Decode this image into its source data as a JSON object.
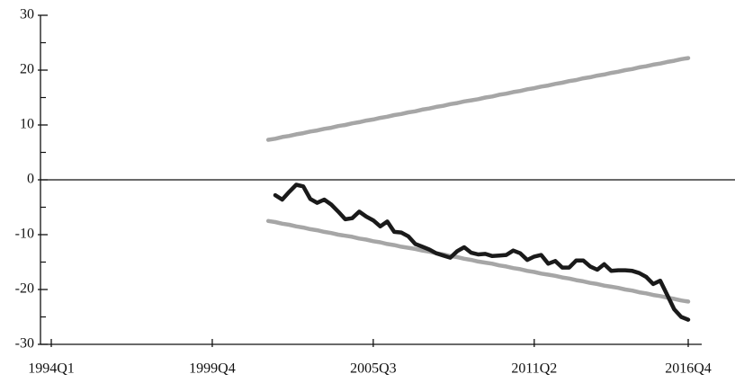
{
  "chart_data": {
    "type": "line",
    "categories": [
      "1994Q1",
      null,
      null,
      null,
      null,
      null,
      null,
      null,
      null,
      null,
      null,
      null,
      null,
      null,
      null,
      null,
      null,
      null,
      null,
      null,
      null,
      null,
      null,
      "1999Q4",
      null,
      null,
      null,
      null,
      null,
      null,
      null,
      null,
      null,
      null,
      null,
      null,
      null,
      null,
      null,
      null,
      null,
      null,
      null,
      null,
      null,
      null,
      "2005Q3",
      null,
      null,
      null,
      null,
      null,
      null,
      null,
      null,
      null,
      null,
      null,
      null,
      null,
      null,
      null,
      null,
      null,
      null,
      null,
      null,
      null,
      null,
      "2011Q2",
      null,
      null,
      null,
      null,
      null,
      null,
      null,
      null,
      null,
      null,
      null,
      null,
      null,
      null,
      null,
      null,
      null,
      null,
      null,
      null,
      null,
      "2016Q4"
    ],
    "series": [
      {
        "color": "#a6a6a6",
        "values": [
          null,
          null,
          null,
          null,
          null,
          null,
          null,
          null,
          null,
          null,
          null,
          null,
          null,
          null,
          null,
          null,
          null,
          null,
          null,
          null,
          null,
          null,
          null,
          null,
          null,
          null,
          null,
          null,
          null,
          null,
          null,
          7.3,
          7.5,
          7.8,
          8.0,
          8.3,
          8.5,
          8.8,
          9.0,
          9.3,
          9.5,
          9.8,
          10.0,
          10.3,
          10.5,
          10.8,
          11.0,
          11.3,
          11.5,
          11.8,
          12.0,
          12.3,
          12.5,
          12.8,
          13.0,
          13.3,
          13.5,
          13.8,
          14.0,
          14.3,
          14.5,
          14.7,
          15.0,
          15.2,
          15.5,
          15.7,
          16.0,
          16.2,
          16.5,
          16.7,
          17.0,
          17.2,
          17.5,
          17.7,
          18.0,
          18.2,
          18.5,
          18.7,
          19.0,
          19.2,
          19.5,
          19.7,
          20.0,
          20.2,
          20.5,
          20.7,
          21.0,
          21.2,
          21.5,
          21.7,
          22.0,
          22.2
        ]
      },
      {
        "color": "#a6a6a6",
        "values": [
          null,
          null,
          null,
          null,
          null,
          null,
          null,
          null,
          null,
          null,
          null,
          null,
          null,
          null,
          null,
          null,
          null,
          null,
          null,
          null,
          null,
          null,
          null,
          null,
          null,
          null,
          null,
          null,
          null,
          null,
          null,
          -7.5,
          -7.7,
          -8.0,
          -8.2,
          -8.5,
          -8.7,
          -9.0,
          -9.2,
          -9.5,
          -9.7,
          -10.0,
          -10.2,
          -10.4,
          -10.7,
          -10.9,
          -11.2,
          -11.4,
          -11.7,
          -11.9,
          -12.2,
          -12.4,
          -12.6,
          -12.9,
          -13.1,
          -13.4,
          -13.6,
          -13.9,
          -14.1,
          -14.4,
          -14.6,
          -14.9,
          -15.1,
          -15.3,
          -15.6,
          -15.8,
          -16.1,
          -16.3,
          -16.6,
          -16.8,
          -17.1,
          -17.3,
          -17.5,
          -17.8,
          -18.0,
          -18.3,
          -18.5,
          -18.8,
          -19.0,
          -19.3,
          -19.5,
          -19.7,
          -20.0,
          -20.2,
          -20.5,
          -20.7,
          -21.0,
          -21.2,
          -21.5,
          -21.7,
          -22.0,
          -22.2
        ]
      },
      {
        "color": "#1a1a1a",
        "values": [
          null,
          null,
          null,
          null,
          null,
          null,
          null,
          null,
          null,
          null,
          null,
          null,
          null,
          null,
          null,
          null,
          null,
          null,
          null,
          null,
          null,
          null,
          null,
          null,
          null,
          null,
          null,
          null,
          null,
          null,
          null,
          null,
          -2.8,
          -3.6,
          -2.2,
          -0.9,
          -1.2,
          -3.5,
          -4.2,
          -3.6,
          -4.5,
          -5.8,
          -7.2,
          -7.0,
          -5.8,
          -6.7,
          -7.4,
          -8.5,
          -7.6,
          -9.5,
          -9.6,
          -10.3,
          -11.7,
          -12.2,
          -12.7,
          -13.4,
          -13.8,
          -14.2,
          -13.0,
          -12.3,
          -13.3,
          -13.6,
          -13.5,
          -13.9,
          -13.8,
          -13.7,
          -12.9,
          -13.4,
          -14.6,
          -14.0,
          -13.7,
          -15.3,
          -14.8,
          -16.0,
          -16.0,
          -14.7,
          -14.7,
          -15.8,
          -16.4,
          -15.4,
          -16.6,
          -16.5,
          -16.5,
          -16.6,
          -17.0,
          -17.7,
          -19.0,
          -18.4,
          -21.0,
          -23.6,
          -25.0,
          -25.5
        ]
      }
    ],
    "ylim": [
      -30,
      30
    ],
    "yticks": [
      -30,
      -20,
      -10,
      0,
      10,
      20,
      30
    ]
  }
}
